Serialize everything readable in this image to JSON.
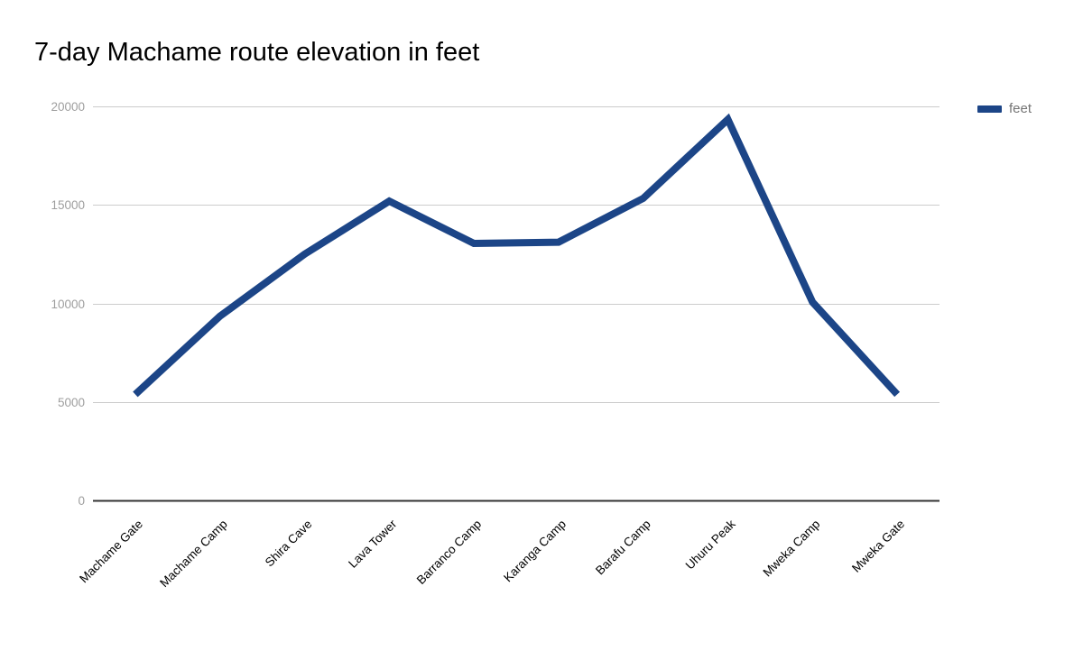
{
  "title": "7-day Machame route elevation in feet",
  "legend": {
    "label": "feet",
    "swatch_color": "#1c4587"
  },
  "chart_data": {
    "type": "line",
    "title": "7-day Machame route elevation in feet",
    "xlabel": "",
    "ylabel": "",
    "categories": [
      "Machame Gate",
      "Machame Camp",
      "Shira Cave",
      "Lava Tower",
      "Barranco Camp",
      "Karanga Camp",
      "Barafu Camp",
      "Uhuru Peak",
      "Mweka Camp",
      "Mweka Gate"
    ],
    "series": [
      {
        "name": "feet",
        "color": "#1c4587",
        "values": [
          5380,
          9350,
          12500,
          15190,
          13044,
          13106,
          15331,
          19341,
          10065,
          5380
        ]
      }
    ],
    "ylim": [
      0,
      20000
    ],
    "yticks": [
      0,
      5000,
      10000,
      15000,
      20000
    ],
    "grid": true,
    "legend_position": "right"
  },
  "colors": {
    "line": "#1c4587",
    "gridline": "#cccccc",
    "axis": "#333333",
    "ytick_label": "#9e9e9e",
    "xtick_label": "#000000",
    "title": "#000000",
    "legend_text": "#757575"
  }
}
